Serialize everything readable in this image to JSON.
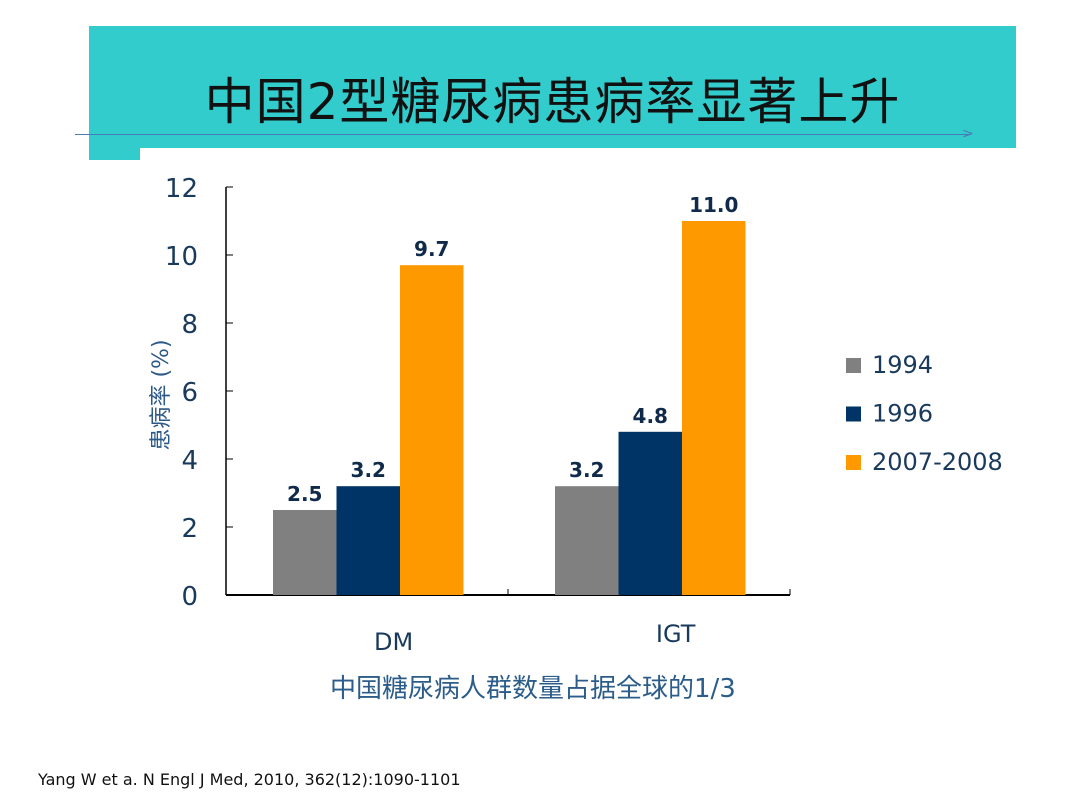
{
  "slide": {
    "title": "中国2型糖尿病患病率显著上升",
    "subtitle": "中国糖尿病人群数量占据全球的1/3",
    "citation": "Yang W et a. N Engl J Med, 2010, 362(12):1090-1101",
    "banner_color": "#33cccc"
  },
  "chart_data": {
    "type": "bar",
    "categories": [
      "DM",
      "IGT"
    ],
    "series": [
      {
        "name": "1994",
        "values": [
          2.5,
          3.2
        ],
        "color": "#808080"
      },
      {
        "name": "1996",
        "values": [
          3.2,
          4.8
        ],
        "color": "#003366"
      },
      {
        "name": "2007-2008",
        "values": [
          9.7,
          11.0
        ],
        "color": "#ff9900"
      }
    ],
    "data_labels": [
      [
        "2.5",
        "3.2"
      ],
      [
        "3.2",
        "4.8"
      ],
      [
        "9.7",
        "11.0"
      ]
    ],
    "title": "",
    "xlabel": "",
    "ylabel": "患病率 (%)",
    "ylim": [
      0,
      12
    ],
    "yticks": [
      "0",
      "2",
      "4",
      "6",
      "8",
      "10",
      "12"
    ],
    "grid": false,
    "legend_position": "right"
  }
}
